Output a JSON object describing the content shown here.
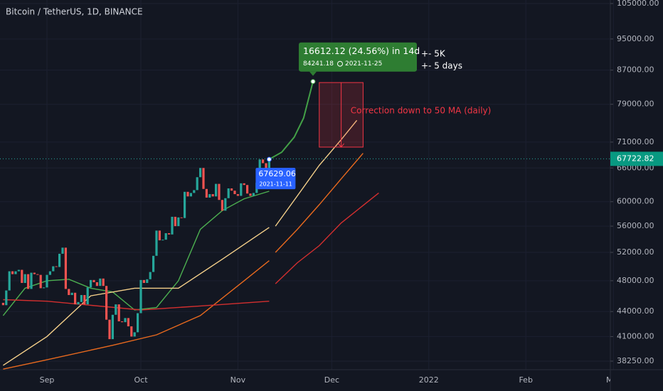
{
  "chart_data": {
    "type": "candlestick",
    "title": "Bitcoin / TetherUS, 1D, BINANCE",
    "log_scale": true,
    "xlim": [
      "2021-08-17",
      "2022-02-28"
    ],
    "ylim": [
      37340,
      106050
    ],
    "xticks": [
      {
        "value": "2021-09-01",
        "label": "Sep"
      },
      {
        "value": "2021-10-01",
        "label": "Oct"
      },
      {
        "value": "2021-11-01",
        "label": "Nov"
      },
      {
        "value": "2021-12-01",
        "label": "Dec"
      },
      {
        "value": "2022-01-01",
        "label": "2022"
      },
      {
        "value": "2022-02-01",
        "label": "Feb"
      },
      {
        "value": "2022-03-01",
        "label": "Mar"
      }
    ],
    "yticks": [
      {
        "value": 38250,
        "label": "38250.00"
      },
      {
        "value": 41000,
        "label": "41000.00"
      },
      {
        "value": 44000,
        "label": "44000.00"
      },
      {
        "value": 48000,
        "label": "48000.00"
      },
      {
        "value": 52000,
        "label": "52000.00"
      },
      {
        "value": 56000,
        "label": "56000.00"
      },
      {
        "value": 60000,
        "label": "60000.00"
      },
      {
        "value": 66000,
        "label": "66000.00"
      },
      {
        "value": 71000,
        "label": "71000.00"
      },
      {
        "value": 79000,
        "label": "79000.00"
      },
      {
        "value": 87000,
        "label": "87000.00"
      },
      {
        "value": 95000,
        "label": "95000.00"
      },
      {
        "value": 105000,
        "label": "105000.00"
      }
    ],
    "up_color": "#26a69a",
    "down_color": "#ef5350",
    "candles": {
      "x": [
        "2021-08-18",
        "2021-08-19",
        "2021-08-20",
        "2021-08-21",
        "2021-08-22",
        "2021-08-23",
        "2021-08-24",
        "2021-08-25",
        "2021-08-26",
        "2021-08-27",
        "2021-08-28",
        "2021-08-29",
        "2021-08-30",
        "2021-08-31",
        "2021-09-01",
        "2021-09-02",
        "2021-09-03",
        "2021-09-04",
        "2021-09-05",
        "2021-09-06",
        "2021-09-07",
        "2021-09-08",
        "2021-09-09",
        "2021-09-10",
        "2021-09-11",
        "2021-09-12",
        "2021-09-13",
        "2021-09-14",
        "2021-09-15",
        "2021-09-16",
        "2021-09-17",
        "2021-09-18",
        "2021-09-19",
        "2021-09-20",
        "2021-09-21",
        "2021-09-22",
        "2021-09-23",
        "2021-09-24",
        "2021-09-25",
        "2021-09-26",
        "2021-09-27",
        "2021-09-28",
        "2021-09-29",
        "2021-09-30",
        "2021-10-01",
        "2021-10-02",
        "2021-10-03",
        "2021-10-04",
        "2021-10-05",
        "2021-10-06",
        "2021-10-07",
        "2021-10-08",
        "2021-10-09",
        "2021-10-10",
        "2021-10-11",
        "2021-10-12",
        "2021-10-13",
        "2021-10-14",
        "2021-10-15",
        "2021-10-16",
        "2021-10-17",
        "2021-10-18",
        "2021-10-19",
        "2021-10-20",
        "2021-10-21",
        "2021-10-22",
        "2021-10-23",
        "2021-10-24",
        "2021-10-25",
        "2021-10-26",
        "2021-10-27",
        "2021-10-28",
        "2021-10-29",
        "2021-10-30",
        "2021-10-31",
        "2021-11-01",
        "2021-11-02",
        "2021-11-03",
        "2021-11-04",
        "2021-11-05",
        "2021-11-06",
        "2021-11-07",
        "2021-11-08",
        "2021-11-09",
        "2021-11-10",
        "2021-11-11"
      ],
      "open": [
        45100,
        44800,
        46700,
        49300,
        48900,
        49300,
        49500,
        47700,
        48900,
        46900,
        49100,
        48900,
        48800,
        47000,
        47100,
        48800,
        49300,
        50000,
        49900,
        51800,
        52700,
        46900,
        46100,
        46400,
        44900,
        45200,
        46100,
        44900,
        47100,
        48100,
        47800,
        47300,
        48300,
        47300,
        43000,
        40700,
        43600,
        44900,
        42800,
        42700,
        43200,
        42200,
        41000,
        41500,
        43800,
        48100,
        47700,
        48200,
        49200,
        51500,
        55300,
        53800,
        53900,
        54900,
        54700,
        57500,
        56000,
        57400,
        57300,
        61700,
        60900,
        61500,
        62000,
        64300,
        66000,
        62200,
        60700,
        61300,
        60900,
        63100,
        60300,
        58500,
        60600,
        62300,
        61900,
        61300,
        61000,
        63200,
        62900,
        61400,
        61000,
        61500,
        63300,
        67600,
        66900,
        64900
      ],
      "close": [
        44800,
        46700,
        49300,
        48900,
        49300,
        49500,
        47700,
        48900,
        46900,
        49100,
        48900,
        48800,
        47000,
        47100,
        48800,
        49300,
        50000,
        49900,
        51800,
        52700,
        46900,
        46100,
        46400,
        44900,
        45200,
        46100,
        44900,
        47100,
        48100,
        47800,
        47300,
        48300,
        47300,
        43000,
        40700,
        43600,
        44900,
        42800,
        42700,
        43200,
        42200,
        41000,
        41500,
        43800,
        48100,
        47700,
        48200,
        49200,
        51500,
        55300,
        53800,
        53900,
        54900,
        54700,
        57500,
        56000,
        57400,
        57300,
        61700,
        60900,
        61500,
        62000,
        64300,
        66000,
        62200,
        60700,
        61300,
        60900,
        63100,
        60300,
        58500,
        60600,
        62300,
        61900,
        61300,
        61000,
        63200,
        62900,
        61400,
        61000,
        61500,
        63300,
        67600,
        66900,
        64900,
        67722.82
      ]
    },
    "series": [
      {
        "color": "#4caf50",
        "x": [
          "2021-08-18",
          "2021-08-25",
          "2021-09-01",
          "2021-09-08",
          "2021-09-15",
          "2021-09-22",
          "2021-09-29",
          "2021-10-06",
          "2021-10-13",
          "2021-10-20",
          "2021-10-27",
          "2021-11-03",
          "2021-11-11"
        ],
        "values": [
          43500,
          47000,
          48000,
          48200,
          47000,
          46500,
          44200,
          44500,
          48000,
          55500,
          58500,
          60500,
          61800
        ]
      },
      {
        "color": "#f5d08a",
        "x": [
          "2021-08-18",
          "2021-09-01",
          "2021-09-15",
          "2021-09-29",
          "2021-10-13",
          "2021-10-27",
          "2021-11-11",
          "2021-11-12",
          "2021-11-13",
          "2021-11-20",
          "2021-11-27",
          "2021-12-04",
          "2021-12-09"
        ],
        "values": [
          37800,
          41000,
          46000,
          47000,
          47000,
          51000,
          55800,
          null,
          56000,
          61000,
          66500,
          71500,
          75500
        ]
      },
      {
        "color": "#e8691e",
        "x": [
          "2021-08-18",
          "2021-09-01",
          "2021-09-22",
          "2021-10-06",
          "2021-10-20",
          "2021-11-03",
          "2021-11-11",
          "2021-11-12",
          "2021-11-13",
          "2021-11-20",
          "2021-11-27",
          "2021-12-04",
          "2021-12-11"
        ],
        "values": [
          37400,
          38400,
          40000,
          41200,
          43500,
          48000,
          50800,
          null,
          52000,
          55500,
          59500,
          64000,
          68800
        ]
      },
      {
        "color": "#d32f2f",
        "x": [
          "2021-08-18",
          "2021-09-01",
          "2021-10-01",
          "2021-10-20",
          "2021-11-11",
          "2021-11-12",
          "2021-11-13",
          "2021-11-20",
          "2021-11-27",
          "2021-12-04",
          "2021-12-16"
        ],
        "values": [
          45500,
          45300,
          44200,
          44700,
          45300,
          null,
          47600,
          50500,
          53000,
          56500,
          61500
        ]
      }
    ],
    "measure": {
      "label": "16612.12 (24.56%) in 14d",
      "color": "#43a047",
      "x": [
        "2021-11-11",
        "2021-11-15",
        "2021-11-19",
        "2021-11-22",
        "2021-11-25"
      ],
      "values": [
        67629.06,
        69000,
        72000,
        76000,
        84241.18
      ]
    },
    "notes": [
      "+- 5K",
      "+- 5 days"
    ],
    "correction": {
      "label": "Correction down to 50 MA (daily)",
      "color": "#f23645",
      "x": [
        "2021-11-27",
        "2021-12-11"
      ],
      "y": [
        84000,
        70000
      ]
    }
  }
}
